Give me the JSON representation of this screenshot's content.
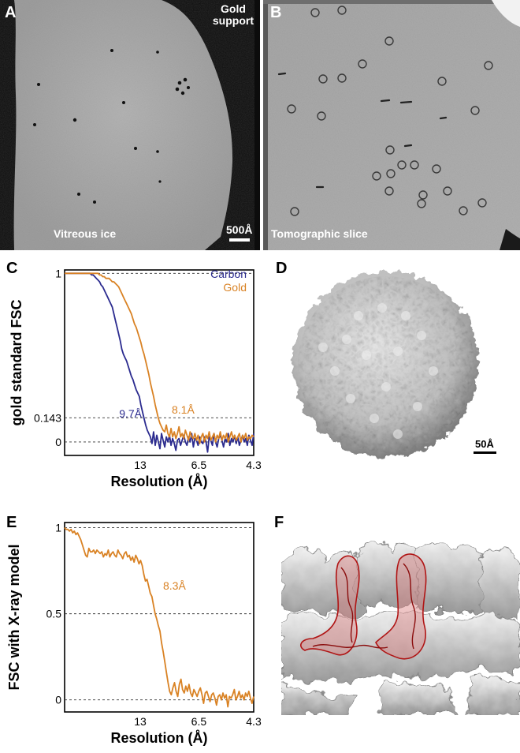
{
  "figure": {
    "panels": {
      "A": {
        "letter": "A",
        "labels": {
          "support": "Gold\nsupport",
          "ice": "Vitreous ice",
          "scale": "500Å"
        }
      },
      "B": {
        "letter": "B",
        "labels": {
          "slice": "Tomographic slice"
        }
      },
      "C": {
        "letter": "C"
      },
      "D": {
        "letter": "D",
        "scale": "50Å"
      },
      "E": {
        "letter": "E"
      },
      "F": {
        "letter": "F"
      }
    },
    "colors": {
      "carbon": "#2b2b8f",
      "gold": "#d98224",
      "micrograph_bg": "#a9a9a9",
      "dark_bg": "#0c0c0c",
      "fitted_model": "#cc1a1a"
    },
    "icons": [
      "capsid-surface-render",
      "density-map-with-fitted-model"
    ]
  },
  "chart_data": [
    {
      "type": "line",
      "panel": "C",
      "ylabel": "gold standard FSC",
      "xlabel": "Resolution (Å)",
      "x_ticks": [
        "13",
        "6.5",
        "4.3"
      ],
      "y_ticks": [
        "1",
        "0.143",
        "0"
      ],
      "ylim": [
        -0.08,
        1.02
      ],
      "reference_lines": [
        1,
        0.143,
        0
      ],
      "grid": false,
      "legend_position": "top-right",
      "series": [
        {
          "name": "Carbon",
          "color": "#2b2b8f",
          "annotation": "9.7Å",
          "values": [
            1,
            1,
            1,
            1,
            1,
            1,
            1,
            1,
            1,
            1,
            1,
            1,
            1,
            1,
            1,
            1,
            1,
            0.99,
            0.99,
            0.98,
            0.97,
            0.96,
            0.95,
            0.93,
            0.92,
            0.9,
            0.88,
            0.86,
            0.84,
            0.82,
            0.8,
            0.76,
            0.72,
            0.68,
            0.64,
            0.6,
            0.55,
            0.52,
            0.5,
            0.48,
            0.45,
            0.42,
            0.39,
            0.37,
            0.34,
            0.31,
            0.29,
            0.27,
            0.22,
            0.18,
            0.14,
            0.1,
            0.07,
            0.05,
            0.03,
            -0.01,
            0.06,
            -0.02,
            0.04,
            0.0,
            -0.04,
            0.05,
            0.01,
            -0.03,
            0.03,
            0.0,
            0.04,
            -0.02,
            0.02,
            -0.01,
            -0.05,
            0.01,
            0.02,
            -0.02,
            0.01,
            0.04,
            0.0,
            -0.02,
            0.03,
            0.0,
            0.05,
            -0.03,
            0.02,
            0.01,
            -0.02,
            0.03,
            0.0,
            -0.01,
            0.03,
            0.0,
            -0.06,
            0.03,
            0.01,
            -0.02,
            0.05,
            0.0,
            -0.03,
            0.02,
            0.04,
            0.01,
            -0.03,
            0.02,
            0.0,
            0.05,
            -0.02,
            0.02,
            0.0,
            0.04,
            -0.01,
            0.03,
            -0.02,
            0.01,
            0.04,
            0.0,
            0.02,
            -0.02,
            0.04,
            0.01,
            -0.02,
            0.05
          ]
        },
        {
          "name": "Gold",
          "color": "#d98224",
          "annotation": "8.1Å",
          "values": [
            1,
            1,
            1,
            1,
            1,
            1,
            1,
            1,
            1,
            1,
            1,
            1,
            1,
            1,
            1,
            1,
            1,
            1,
            1,
            1,
            1,
            1,
            0.99,
            0.99,
            0.98,
            0.98,
            0.97,
            0.97,
            0.97,
            0.96,
            0.95,
            0.95,
            0.94,
            0.93,
            0.92,
            0.9,
            0.88,
            0.86,
            0.84,
            0.82,
            0.8,
            0.78,
            0.76,
            0.73,
            0.7,
            0.68,
            0.65,
            0.62,
            0.59,
            0.55,
            0.52,
            0.48,
            0.44,
            0.4,
            0.35,
            0.31,
            0.27,
            0.22,
            0.18,
            0.14,
            0.11,
            0.09,
            0.07,
            0.06,
            0.1,
            0.05,
            0.03,
            0.08,
            0.03,
            0.06,
            0.02,
            0.05,
            0.09,
            0.03,
            0.05,
            0.02,
            0.07,
            0.04,
            0.01,
            0.06,
            0.03,
            0.02,
            0.05,
            0.01,
            0.04,
            -0.01,
            0.03,
            0.05,
            0.0,
            0.04,
            0.02,
            0.06,
            0.01,
            0.03,
            0.05,
            0.0,
            0.04,
            0.02,
            0.06,
            0.01,
            0.04,
            0.02,
            0.05,
            0.0,
            0.03,
            0.06,
            0.02,
            0.04,
            0.01,
            0.03,
            0.05,
            0.0,
            0.04,
            0.02,
            0.05,
            0.01,
            0.03,
            0.02,
            0.04,
            0.03
          ]
        }
      ]
    },
    {
      "type": "line",
      "panel": "E",
      "ylabel": "FSC with X-ray model",
      "xlabel": "Resolution (Å)",
      "x_ticks": [
        "13",
        "6.5",
        "4.3"
      ],
      "y_ticks": [
        "1",
        "0.5",
        "0"
      ],
      "ylim": [
        -0.07,
        1.03
      ],
      "reference_lines": [
        1,
        0.5,
        0
      ],
      "grid": false,
      "series": [
        {
          "name": "",
          "color": "#d98224",
          "annotation": "8.3Å",
          "values": [
            1,
            0.99,
            0.99,
            0.98,
            0.99,
            0.97,
            0.98,
            0.96,
            0.97,
            0.95,
            0.93,
            0.9,
            0.87,
            0.84,
            0.83,
            0.88,
            0.86,
            0.86,
            0.87,
            0.85,
            0.87,
            0.86,
            0.85,
            0.86,
            0.83,
            0.85,
            0.84,
            0.87,
            0.83,
            0.85,
            0.86,
            0.84,
            0.83,
            0.87,
            0.85,
            0.84,
            0.82,
            0.85,
            0.86,
            0.83,
            0.84,
            0.81,
            0.83,
            0.8,
            0.84,
            0.82,
            0.79,
            0.81,
            0.78,
            0.73,
            0.69,
            0.7,
            0.66,
            0.62,
            0.6,
            0.55,
            0.5,
            0.47,
            0.43,
            0.4,
            0.33,
            0.28,
            0.22,
            0.16,
            0.1,
            0.05,
            0.03,
            0.07,
            0.1,
            0.05,
            0.02,
            0.09,
            0.12,
            0.06,
            0.04,
            0.08,
            0.05,
            0.09,
            0.04,
            0.02,
            0.06,
            0.04,
            0.02,
            0.05,
            0.07,
            0.03,
            -0.02,
            0.04,
            0.05,
            0.02,
            -0.01,
            0.03,
            0.04,
            0.01,
            -0.03,
            0.02,
            0.03,
            0.0,
            0.04,
            0.01,
            0.03,
            -0.04,
            0.02,
            0.01,
            0.03,
            0.06,
            0.0,
            0.02,
            0.05,
            0.01,
            0.03,
            0.0,
            0.04,
            0.02,
            0.05,
            0.01,
            -0.02,
            0.02
          ]
        }
      ]
    }
  ]
}
